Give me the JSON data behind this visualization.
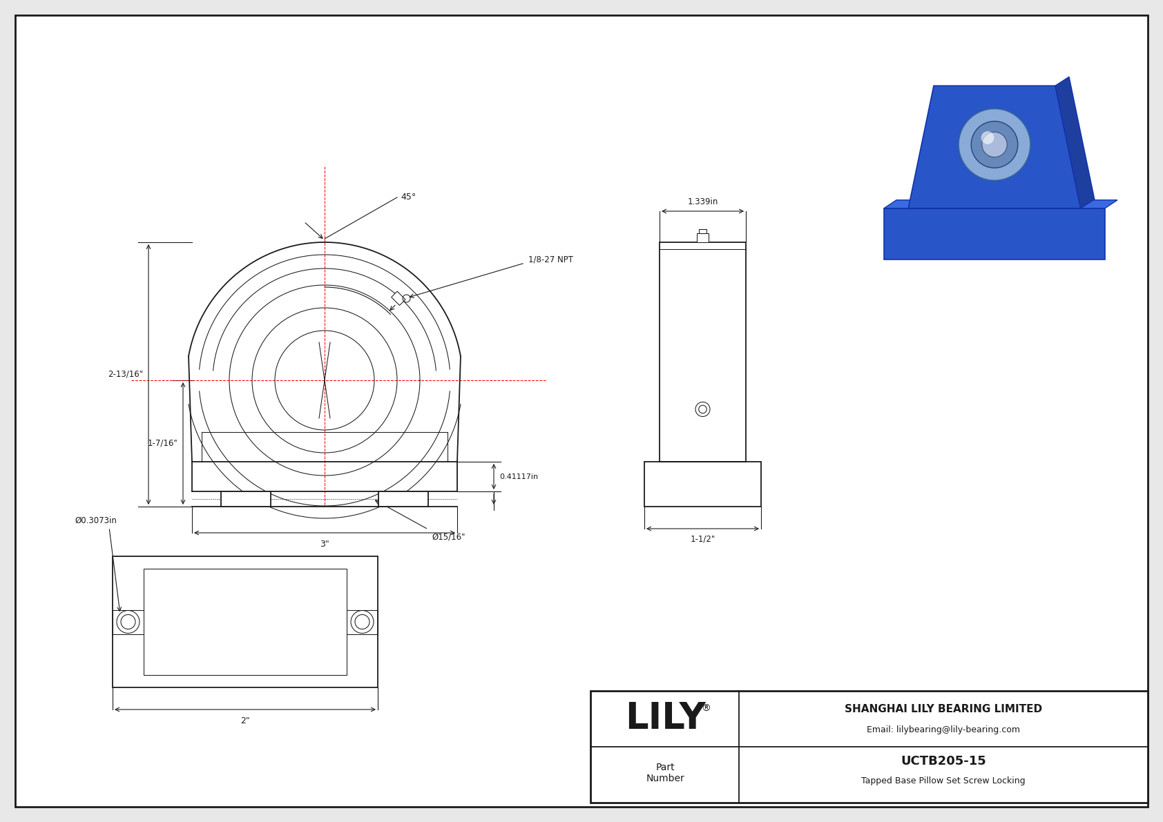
{
  "background_color": "#e8e8e8",
  "page_bg": "#ffffff",
  "line_color": "#1a1a1a",
  "dim_color": "#1a1a1a",
  "red_color": "#ff0000",
  "title_block": {
    "company": "SHANGHAI LILY BEARING LIMITED",
    "email": "Email: lilybearing@lily-bearing.com",
    "part_label": "Part\nNumber",
    "part_number": "UCTB205-15",
    "description": "Tapped Base Pillow Set Screw Locking",
    "brand": "LILY"
  },
  "dimensions": {
    "angle": "45°",
    "npt": "1/8-27 NPT",
    "height1": "2-13/16\"",
    "height2": "1-7/16\"",
    "width1": "3\"",
    "bolt_dia": "Ø15/16\"",
    "side_width": "1.339in",
    "side_height": "0.41117in",
    "side_bottom": "1-1/2\"",
    "bottom_dia": "Ø0.3073in",
    "bottom_width": "2\""
  }
}
